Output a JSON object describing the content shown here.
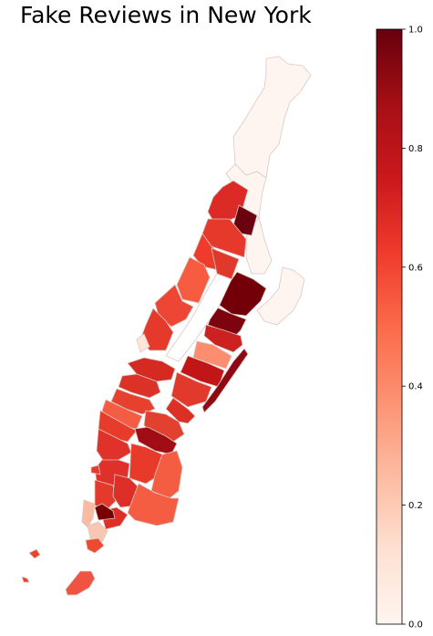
{
  "title": "Fake Reviews in New York",
  "colorbar": {
    "min": 0.0,
    "max": 1.0,
    "ticks": [
      {
        "value": 0.0,
        "label": "0.0"
      },
      {
        "value": 0.2,
        "label": "0.2"
      },
      {
        "value": 0.4,
        "label": "0.4"
      },
      {
        "value": 0.6,
        "label": "0.6"
      },
      {
        "value": 0.8,
        "label": "0.8"
      },
      {
        "value": 1.0,
        "label": "1.0"
      }
    ],
    "colormap": "Reds",
    "stops": [
      "#fff5f0",
      "#fee0d2",
      "#fcbba1",
      "#fc9272",
      "#fb6a4a",
      "#ef3b2c",
      "#cb181d",
      "#a50f15",
      "#67000d"
    ]
  },
  "map": {
    "region": "Manhattan",
    "boundary_color": "#cccccc"
  }
}
